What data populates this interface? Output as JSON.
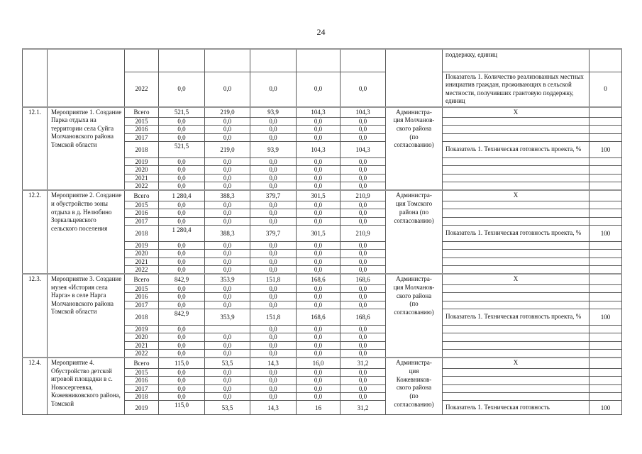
{
  "page": {
    "number": "24"
  },
  "colors": {
    "text": "#101010",
    "border": "#5a5a5a",
    "block_border": "#949494",
    "background": "#ffffff"
  },
  "carryover": {
    "rows": [
      {
        "year": "",
        "values": [
          "",
          "",
          "",
          "",
          ""
        ],
        "indicator": "поддержку, единиц",
        "indicator_value": ""
      },
      {
        "year": "2022",
        "values": [
          "0,0",
          "0,0",
          "0,0",
          "0,0",
          "0,0"
        ],
        "indicator": "Показатель 1. Количество реализованных местных инициатив граждан, проживающих в сельской местности, получивших грантовую поддержку, единиц",
        "indicator_value": "0"
      }
    ]
  },
  "blocks": [
    {
      "num": "12.1.",
      "title": "Мероприятие 1. Создание Парка отдыха на территории села Суйга Молчановского района Томской области",
      "administration": "Администра-\nция Молчанов-\nского района\n(по\nсогласованию)",
      "rows": [
        {
          "year": "Всего",
          "values": [
            "521,5",
            "219,0",
            "93,9",
            "104,3",
            "104,3"
          ],
          "indicator": "X",
          "indicator_value": ""
        },
        {
          "year": "2015",
          "values": [
            "0,0",
            "0,0",
            "0,0",
            "0,0",
            "0,0"
          ],
          "indicator": "",
          "indicator_value": ""
        },
        {
          "year": "2016",
          "values": [
            "0,0",
            "0,0",
            "0,0",
            "0,0",
            "0,0"
          ],
          "indicator": "",
          "indicator_value": ""
        },
        {
          "year": "2017",
          "values": [
            "0,0",
            "0,0",
            "0,0",
            "0,0",
            "0,0"
          ],
          "indicator": "",
          "indicator_value": ""
        },
        {
          "year": "2018",
          "values": [
            "521,5",
            "219,0",
            "93,9",
            "104,3",
            "104,3"
          ],
          "indicator": "Показатель 1. Техническая готовность проекта, %",
          "indicator_value": "100"
        },
        {
          "year": "2019",
          "values": [
            "0,0",
            "0,0",
            "0,0",
            "0,0",
            "0,0"
          ],
          "indicator": "",
          "indicator_value": ""
        },
        {
          "year": "2020",
          "values": [
            "0,0",
            "0,0",
            "0,0",
            "0,0",
            "0,0"
          ],
          "indicator": "",
          "indicator_value": ""
        },
        {
          "year": "2021",
          "values": [
            "0,0",
            "0,0",
            "0,0",
            "0,0",
            "0,0"
          ],
          "indicator": "",
          "indicator_value": ""
        },
        {
          "year": "2022",
          "values": [
            "0,0",
            "0,0",
            "0,0",
            "0,0",
            "0,0"
          ],
          "indicator": "",
          "indicator_value": ""
        }
      ]
    },
    {
      "num": "12.2.",
      "title": "Мероприятие 2. Создание и обустройство зоны отдыха в д. Нелюбино Зоркальцевского сельского поселения",
      "administration": "Администра-\nция Томского\nрайона (по\nсогласованию)",
      "rows": [
        {
          "year": "Всего",
          "values": [
            "1 280,4",
            "388,3",
            "379,7",
            "301,5",
            "210,9"
          ],
          "indicator": "X",
          "indicator_value": ""
        },
        {
          "year": "2015",
          "values": [
            "0,0",
            "0,0",
            "0,0",
            "0,0",
            "0,0"
          ],
          "indicator": "",
          "indicator_value": ""
        },
        {
          "year": "2016",
          "values": [
            "0,0",
            "0,0",
            "0,0",
            "0,0",
            "0,0"
          ],
          "indicator": "",
          "indicator_value": ""
        },
        {
          "year": "2017",
          "values": [
            "0,0",
            "0,0",
            "0,0",
            "0,0",
            "0,0"
          ],
          "indicator": "",
          "indicator_value": ""
        },
        {
          "year": "2018",
          "values": [
            "1 280,4",
            "388,3",
            "379,7",
            "301,5",
            "210,9"
          ],
          "indicator": "Показатель 1. Техническая готовность проекта, %",
          "indicator_value": "100"
        },
        {
          "year": "2019",
          "values": [
            "0,0",
            "0,0",
            "0,0",
            "0,0",
            "0,0"
          ],
          "indicator": "",
          "indicator_value": ""
        },
        {
          "year": "2020",
          "values": [
            "0,0",
            "0,0",
            "0,0",
            "0,0",
            "0,0"
          ],
          "indicator": "",
          "indicator_value": ""
        },
        {
          "year": "2021",
          "values": [
            "0,0",
            "0,0",
            "0,0",
            "0,0",
            "0,0"
          ],
          "indicator": "",
          "indicator_value": ""
        },
        {
          "year": "2022",
          "values": [
            "0,0",
            "0,0",
            "0,0",
            "0,0",
            "0,0"
          ],
          "indicator": "",
          "indicator_value": ""
        }
      ]
    },
    {
      "num": "12.3.",
      "title": "Мероприятие 3. Создание музея «История села Нарга» в селе Нарга Молчановского района Томской области",
      "administration": "Администра-\nция Молчанов-\nского района\n(по\nсогласованию)",
      "rows": [
        {
          "year": "Всего",
          "values": [
            "842,9",
            "353,9",
            "151,8",
            "168,6",
            "168,6"
          ],
          "indicator": "X",
          "indicator_value": ""
        },
        {
          "year": "2015",
          "values": [
            "0,0",
            "0,0",
            "0,0",
            "0,0",
            "0,0"
          ],
          "indicator": "",
          "indicator_value": ""
        },
        {
          "year": "2016",
          "values": [
            "0,0",
            "0,0",
            "0,0",
            "0,0",
            "0,0"
          ],
          "indicator": "",
          "indicator_value": ""
        },
        {
          "year": "2017",
          "values": [
            "0,0",
            "0,0",
            "0,0",
            "0,0",
            "0,0"
          ],
          "indicator": "",
          "indicator_value": ""
        },
        {
          "year": "2018",
          "values": [
            "842,9",
            "353,9",
            "151,8",
            "168,6",
            "168,6"
          ],
          "indicator": "Показатель 1. Техническая готовность проекта, %",
          "indicator_value": "100"
        },
        {
          "year": "2019",
          "values": [
            "0,0",
            "",
            "0,0",
            "0,0",
            "0,0"
          ],
          "indicator": "",
          "indicator_value": ""
        },
        {
          "year": "2020",
          "values": [
            "0,0",
            "0,0",
            "0,0",
            "0,0",
            "0,0"
          ],
          "indicator": "",
          "indicator_value": ""
        },
        {
          "year": "2021",
          "values": [
            "0,0",
            "0,0",
            "0,0",
            "0,0",
            "0,0"
          ],
          "indicator": "",
          "indicator_value": ""
        },
        {
          "year": "2022",
          "values": [
            "0,0",
            "0,0",
            "0,0",
            "0,0",
            "0,0"
          ],
          "indicator": "",
          "indicator_value": ""
        }
      ]
    },
    {
      "num": "12.4.",
      "title": "Мероприятие 4. Обустройство детской игровой площадки в с. Новосергеевка, Кожевниковского района, Томской",
      "administration": "Администра-\nция\nКожевников-\nского района\n(по\nсогласованию)",
      "rows": [
        {
          "year": "Всего",
          "values": [
            "115,0",
            "53,5",
            "14,3",
            "16,0",
            "31,2"
          ],
          "indicator": "X",
          "indicator_value": ""
        },
        {
          "year": "2015",
          "values": [
            "0,0",
            "0,0",
            "0,0",
            "0,0",
            "0,0"
          ],
          "indicator": "",
          "indicator_value": ""
        },
        {
          "year": "2016",
          "values": [
            "0,0",
            "0,0",
            "0,0",
            "0,0",
            "0,0"
          ],
          "indicator": "",
          "indicator_value": ""
        },
        {
          "year": "2017",
          "values": [
            "0,0",
            "0,0",
            "0,0",
            "0,0",
            "0,0"
          ],
          "indicator": "",
          "indicator_value": ""
        },
        {
          "year": "2018",
          "values": [
            "0,0",
            "0,0",
            "0,0",
            "0,0",
            "0,0"
          ],
          "indicator": "",
          "indicator_value": ""
        },
        {
          "year": "2019",
          "values": [
            "115,0",
            "53,5",
            "14,3",
            "16",
            "31,2"
          ],
          "indicator": "Показатель 1. Техническая готовность",
          "indicator_value": "100"
        }
      ]
    }
  ]
}
